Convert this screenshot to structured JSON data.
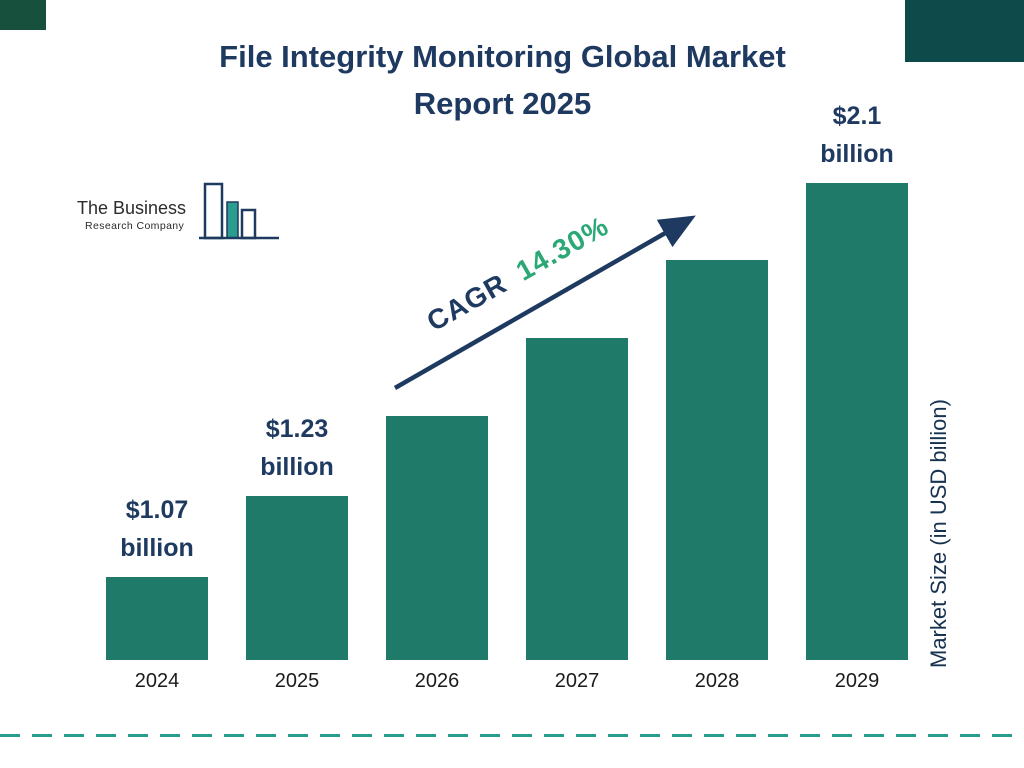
{
  "header": {
    "title_line1": "File Integrity Monitoring Global Market",
    "title_line2": "Report 2025"
  },
  "logo": {
    "line1": "The Business",
    "line2": "Research Company"
  },
  "annotations": {
    "cagr_label": "CAGR",
    "cagr_value": "14.30%",
    "y_axis_label": "Market Size (in USD billion)"
  },
  "chart_data": {
    "type": "bar",
    "title": "File Integrity Monitoring Global Market Report 2025",
    "categories": [
      "2024",
      "2025",
      "2026",
      "2027",
      "2028",
      "2029"
    ],
    "values": [
      1.07,
      1.23,
      1.41,
      1.61,
      1.84,
      2.1
    ],
    "unit": "USD billion",
    "bar_value_labels": [
      [
        "$1.07",
        "billion"
      ],
      [
        "$1.23",
        "billion"
      ],
      null,
      null,
      null,
      [
        "$2.1",
        "billion"
      ]
    ],
    "xlabel": "",
    "ylabel": "Market Size (in USD billion)",
    "cagr": "14.30%",
    "bar_color": "#1f7a6a",
    "axis_scale": "log",
    "grid": false,
    "legend": "none"
  },
  "colors": {
    "bar": "#1f7a6a",
    "title": "#1f3a60",
    "cagr_value": "#2aa876",
    "dashed_line": "#2a9d8f",
    "corner_left": "#17503c",
    "corner_right": "#0e4a4a"
  }
}
